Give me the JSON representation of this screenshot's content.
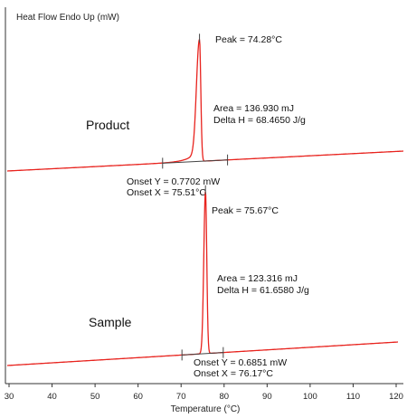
{
  "chart_data": {
    "type": "line",
    "ylabel": "Heat Flow Endo Up (mW)",
    "xlabel": "Temperature (°C)",
    "xlim": [
      29,
      121
    ],
    "xticks": [
      30,
      40,
      50,
      60,
      70,
      80,
      90,
      100,
      110,
      120
    ],
    "colors": {
      "curve": "#e8231e",
      "axis": "#333333",
      "baseline": "#444444"
    },
    "series": [
      {
        "label": "Product",
        "peak_temperature_c": 74.28,
        "peak_label": "Peak = 74.28°C",
        "area_label": "Area = 136.930 mJ",
        "delta_h_label": "Delta H = 68.4650 J/g",
        "onset_y_label": "Onset Y = 0.7702 mW",
        "onset_x_label": "Onset X = 75.51°C",
        "baseline_limits_c": [
          65.7,
          80.8
        ]
      },
      {
        "label": "Sample",
        "peak_temperature_c": 75.67,
        "peak_label": "Peak = 75.67°C",
        "area_label": "Area = 123.316 mJ",
        "delta_h_label": "Delta H = 61.6580 J/g",
        "onset_y_label": "Onset Y = 0.6851 mW",
        "onset_x_label": "Onset X = 76.17°C",
        "baseline_limits_c": [
          70.2,
          79.8
        ]
      }
    ]
  }
}
